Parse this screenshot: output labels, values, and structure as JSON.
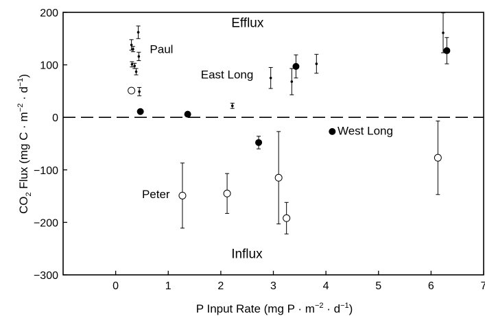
{
  "chart_data": {
    "type": "scatter",
    "title": "",
    "xlabel": {
      "prefix": "P Input Rate (mg P · m",
      "exp1": "−2",
      "middle": " · d",
      "exp2": "−1",
      "suffix": ")"
    },
    "ylabel": {
      "prefix": "CO",
      "sub": "2",
      "main": " Flux (mg C · m",
      "exp1": "−2",
      "middle": " · d",
      "exp2": "−1",
      "suffix": ")"
    },
    "xlim": [
      -1,
      7
    ],
    "ylim": [
      -300,
      200
    ],
    "xticks": [
      0,
      1,
      2,
      3,
      4,
      5,
      6,
      7
    ],
    "xtick_labels": [
      "0",
      "1",
      "2",
      "3",
      "4",
      "5",
      "6",
      "7"
    ],
    "yticks": [
      -300,
      -200,
      -100,
      0,
      100,
      200
    ],
    "ytick_labels": [
      "−300",
      "−200",
      "−100",
      "0",
      "100",
      "200"
    ],
    "grid": false,
    "zero_line": {
      "y": 0,
      "style": "dashed"
    },
    "regions": [
      {
        "text": "Efflux",
        "x": 2.2,
        "y": 172
      },
      {
        "text": "Influx",
        "x": 2.2,
        "y": -268
      }
    ],
    "annotations": [
      {
        "text": "Paul",
        "x": 0.65,
        "y": 122
      },
      {
        "text": "East Long",
        "x": 1.62,
        "y": 74
      },
      {
        "text": "West Long",
        "x": 4.22,
        "y": -33
      },
      {
        "text": "Peter",
        "x": 0.5,
        "y": -154
      }
    ],
    "series": [
      {
        "marker": "filled-circle",
        "points": [
          {
            "x": 0.47,
            "y": 11
          },
          {
            "x": 1.37,
            "y": 6
          },
          {
            "x": 2.72,
            "y": -48,
            "err": 12
          },
          {
            "x": 3.43,
            "y": 97,
            "err": 22
          },
          {
            "x": 4.12,
            "y": -27
          },
          {
            "x": 6.3,
            "y": 127,
            "err": 25
          }
        ]
      },
      {
        "marker": "open-circle",
        "points": [
          {
            "x": 0.3,
            "y": 51
          },
          {
            "x": 1.27,
            "y": -149,
            "err": 62
          },
          {
            "x": 2.12,
            "y": -145,
            "err": 38
          },
          {
            "x": 3.1,
            "y": -115,
            "err": 88
          },
          {
            "x": 3.25,
            "y": -192,
            "err": 30
          },
          {
            "x": 6.13,
            "y": -77,
            "err": 70
          }
        ]
      },
      {
        "marker": "small-point",
        "points": [
          {
            "x": 0.3,
            "y": 138,
            "err": 10
          },
          {
            "x": 0.31,
            "y": 101,
            "err": 5
          },
          {
            "x": 0.33,
            "y": 130,
            "err": 5
          },
          {
            "x": 0.36,
            "y": 98,
            "err": 5
          },
          {
            "x": 0.39,
            "y": 87,
            "err": 6
          },
          {
            "x": 0.43,
            "y": 162,
            "err": 12
          },
          {
            "x": 0.44,
            "y": 116,
            "err": 8
          },
          {
            "x": 0.45,
            "y": 49,
            "err": 8
          },
          {
            "x": 2.22,
            "y": 22,
            "err": 5
          },
          {
            "x": 2.95,
            "y": 75,
            "err": 20
          },
          {
            "x": 3.35,
            "y": 68,
            "err": 25
          },
          {
            "x": 3.82,
            "y": 102,
            "err": 18
          },
          {
            "x": 6.23,
            "y": 161,
            "err": 38
          }
        ]
      }
    ]
  }
}
